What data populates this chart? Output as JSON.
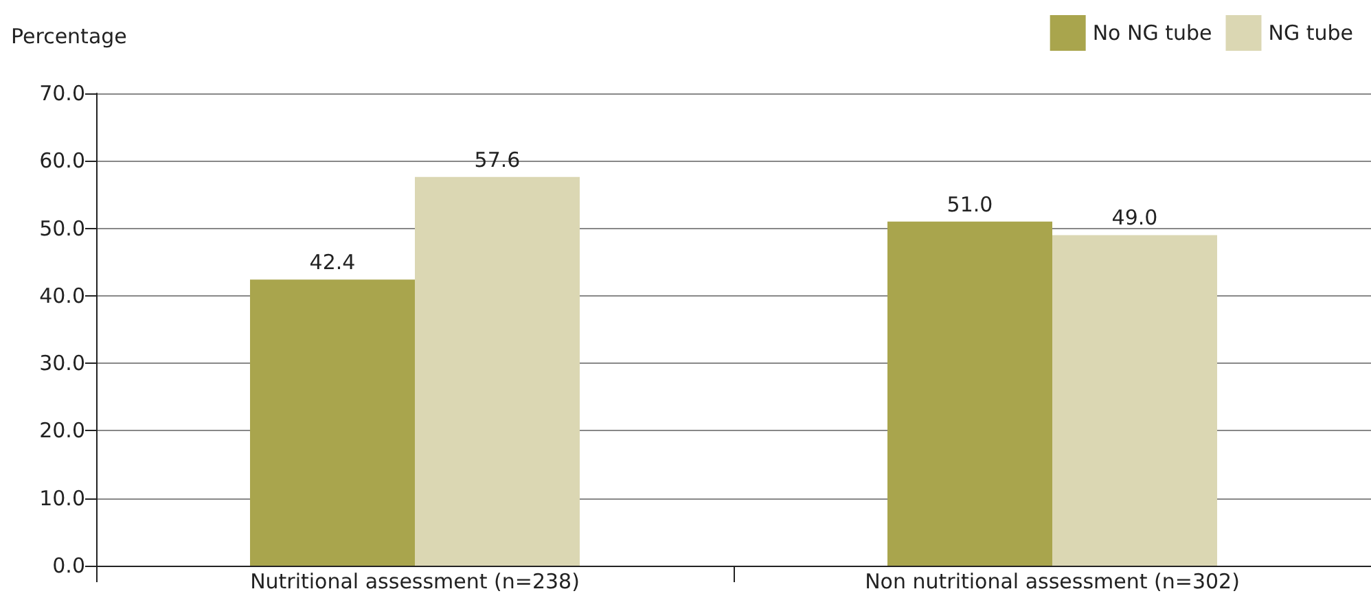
{
  "chart_data": {
    "type": "bar",
    "ylabel": "Percentage",
    "categories": [
      "Nutritional assessment (n=238)",
      "Non nutritional assessment (n=302)"
    ],
    "series": [
      {
        "name": "No NG tube",
        "color": "#a9a54d",
        "values": [
          42.4,
          51.0
        ],
        "value_labels": [
          "42.4",
          "51.0"
        ]
      },
      {
        "name": "NG tube",
        "color": "#dbd7b3",
        "values": [
          57.6,
          49.0
        ],
        "value_labels": [
          "57.6",
          "49.0"
        ]
      }
    ],
    "ylim": [
      0,
      70
    ],
    "yticks": [
      {
        "value": 0,
        "label": "0.0"
      },
      {
        "value": 10,
        "label": "10.0"
      },
      {
        "value": 20,
        "label": "20.0"
      },
      {
        "value": 30,
        "label": "30.0"
      },
      {
        "value": 40,
        "label": "40.0"
      },
      {
        "value": 50,
        "label": "50.0"
      },
      {
        "value": 60,
        "label": "60.0"
      },
      {
        "value": 70,
        "label": "70.0"
      }
    ],
    "grid": "y",
    "legend": "top right"
  }
}
